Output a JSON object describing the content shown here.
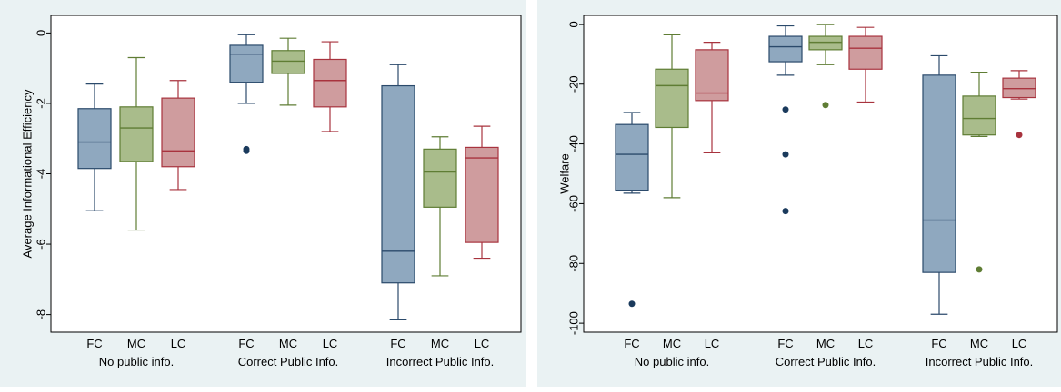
{
  "chart_data": [
    {
      "type": "box",
      "ylabel": "Average Informational Efficiency",
      "ylim": [
        -8.5,
        0.5
      ],
      "yticks": [
        0,
        -2,
        -4,
        -6,
        -8
      ],
      "ytick_labels": [
        "0",
        "-2",
        "-4",
        "-6",
        "-8"
      ],
      "categories": [
        "FC",
        "MC",
        "LC"
      ],
      "groups": [
        "No public info.",
        "Correct Public Info.",
        "Incorrect Public Info."
      ],
      "colors": {
        "FC": "#8fa8bf",
        "MC": "#a9bc8b",
        "LC": "#cf9c9e"
      },
      "edge_colors": {
        "FC": "#2b4a6b",
        "MC": "#5f7d34",
        "LC": "#a8333e"
      },
      "outlier_colors": {
        "FC": "#1a3a5c",
        "MC": "#5f7d34",
        "LC": "#a8333e"
      },
      "boxes": [
        {
          "group": 0,
          "category": "FC",
          "whisker_low": -5.05,
          "q1": -3.85,
          "median": -3.1,
          "q3": -2.15,
          "whisker_high": -1.45,
          "outliers": []
        },
        {
          "group": 0,
          "category": "MC",
          "whisker_low": -5.6,
          "q1": -3.65,
          "median": -2.7,
          "q3": -2.1,
          "whisker_high": -0.7,
          "outliers": []
        },
        {
          "group": 0,
          "category": "LC",
          "whisker_low": -4.45,
          "q1": -3.8,
          "median": -3.35,
          "q3": -1.85,
          "whisker_high": -1.35,
          "outliers": []
        },
        {
          "group": 1,
          "category": "FC",
          "whisker_low": -2.0,
          "q1": -1.4,
          "median": -0.6,
          "q3": -0.35,
          "whisker_high": -0.05,
          "outliers": [
            -3.3,
            -3.35
          ]
        },
        {
          "group": 1,
          "category": "MC",
          "whisker_low": -2.05,
          "q1": -1.15,
          "median": -0.8,
          "q3": -0.5,
          "whisker_high": -0.15,
          "outliers": []
        },
        {
          "group": 1,
          "category": "LC",
          "whisker_low": -2.8,
          "q1": -2.1,
          "median": -1.35,
          "q3": -0.75,
          "whisker_high": -0.25,
          "outliers": []
        },
        {
          "group": 2,
          "category": "FC",
          "whisker_low": -8.15,
          "q1": -7.1,
          "median": -6.2,
          "q3": -1.5,
          "whisker_high": -0.9,
          "outliers": []
        },
        {
          "group": 2,
          "category": "MC",
          "whisker_low": -6.9,
          "q1": -4.95,
          "median": -3.95,
          "q3": -3.3,
          "whisker_high": -2.95,
          "outliers": []
        },
        {
          "group": 2,
          "category": "LC",
          "whisker_low": -6.4,
          "q1": -5.95,
          "median": -3.55,
          "q3": -3.25,
          "whisker_high": -2.65,
          "outliers": []
        }
      ]
    },
    {
      "type": "box",
      "ylabel": "Welfare",
      "ylim": [
        -103,
        3
      ],
      "yticks": [
        0,
        -20,
        -40,
        -60,
        -80,
        -100
      ],
      "ytick_labels": [
        "0",
        "-20",
        "-40",
        "-60",
        "-80",
        "-100"
      ],
      "categories": [
        "FC",
        "MC",
        "LC"
      ],
      "groups": [
        "No public info.",
        "Correct Public Info.",
        "Incorrect Public Info."
      ],
      "colors": {
        "FC": "#8fa8bf",
        "MC": "#a9bc8b",
        "LC": "#cf9c9e"
      },
      "edge_colors": {
        "FC": "#2b4a6b",
        "MC": "#5f7d34",
        "LC": "#a8333e"
      },
      "outlier_colors": {
        "FC": "#1a3a5c",
        "MC": "#5f7d34",
        "LC": "#a8333e"
      },
      "boxes": [
        {
          "group": 0,
          "category": "FC",
          "whisker_low": -56.5,
          "q1": -55.5,
          "median": -43.5,
          "q3": -33.5,
          "whisker_high": -29.5,
          "outliers": [
            -93.5
          ]
        },
        {
          "group": 0,
          "category": "MC",
          "whisker_low": -58,
          "q1": -34.5,
          "median": -20.5,
          "q3": -15,
          "whisker_high": -3.5,
          "outliers": []
        },
        {
          "group": 0,
          "category": "LC",
          "whisker_low": -43,
          "q1": -25.5,
          "median": -23,
          "q3": -8.5,
          "whisker_high": -6,
          "outliers": []
        },
        {
          "group": 1,
          "category": "FC",
          "whisker_low": -17,
          "q1": -12.5,
          "median": -7.5,
          "q3": -4,
          "whisker_high": -0.5,
          "outliers": [
            -28.5,
            -43.5,
            -62.5
          ]
        },
        {
          "group": 1,
          "category": "MC",
          "whisker_low": -13.5,
          "q1": -8.5,
          "median": -6,
          "q3": -4,
          "whisker_high": 0,
          "outliers": [
            -27
          ]
        },
        {
          "group": 1,
          "category": "LC",
          "whisker_low": -26,
          "q1": -15,
          "median": -8,
          "q3": -4,
          "whisker_high": -1,
          "outliers": []
        },
        {
          "group": 2,
          "category": "FC",
          "whisker_low": -97,
          "q1": -83,
          "median": -65.5,
          "q3": -17,
          "whisker_high": -10.5,
          "outliers": []
        },
        {
          "group": 2,
          "category": "MC",
          "whisker_low": -37.5,
          "q1": -37,
          "median": -31.5,
          "q3": -24,
          "whisker_high": -16,
          "outliers": [
            -82
          ]
        },
        {
          "group": 2,
          "category": "LC",
          "whisker_low": -25,
          "q1": -24.5,
          "median": -21.5,
          "q3": -18,
          "whisker_high": -15.5,
          "outliers": [
            -37
          ]
        }
      ]
    }
  ]
}
